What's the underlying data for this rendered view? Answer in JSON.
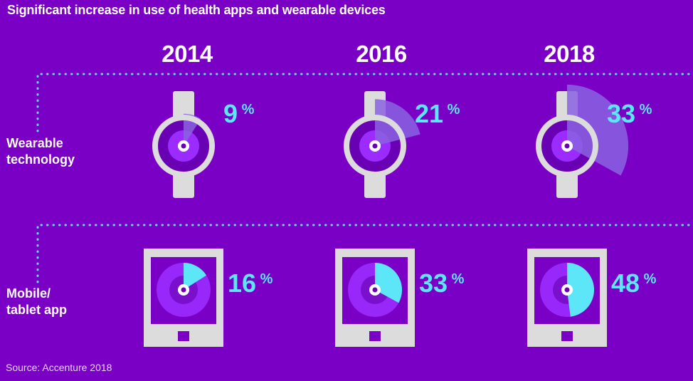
{
  "title": "Significant increase in use of health apps and wearable devices",
  "years": [
    "2014",
    "2016",
    "2018"
  ],
  "rows": [
    {
      "label_line1": "Wearable",
      "label_line2": "technology"
    },
    {
      "label_line1": "Mobile/",
      "label_line2": "tablet app"
    }
  ],
  "source": "Source: Accenture 2018",
  "percent_sign": "%",
  "chart_data": {
    "type": "pie",
    "title": "Significant increase in use of health apps and wearable devices",
    "categories": [
      "2014",
      "2016",
      "2018"
    ],
    "series": [
      {
        "name": "Wearable technology",
        "values": [
          9,
          21,
          33
        ]
      },
      {
        "name": "Mobile/tablet app",
        "values": [
          16,
          33,
          48
        ]
      }
    ],
    "unit": "%"
  },
  "colors": {
    "background": "#7b00c6",
    "accent": "#5ce6f7",
    "device": "#dcdcdc",
    "wedge_wearable": "#8a63e0",
    "wedge_mobile": "#5ce6f7",
    "dots": "#62d9f2"
  }
}
